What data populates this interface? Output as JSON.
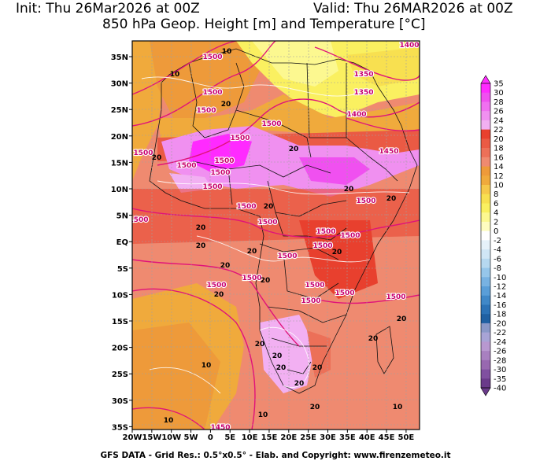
{
  "header": {
    "init_text": "Init: Thu 26Mar2026 at 00Z",
    "valid_text": "Valid: Thu 26MAR2026 at 00Z",
    "product_text": "850 hPa Geop. Height [m] and Temperature [°C]"
  },
  "map": {
    "lat_labels": [
      "35N",
      "30N",
      "25N",
      "20N",
      "15N",
      "10N",
      "5N",
      "EQ",
      "5S",
      "10S",
      "15S",
      "20S",
      "25S",
      "30S",
      "35S"
    ],
    "lon_labels": [
      "20W",
      "15W",
      "10W",
      "5W",
      "0",
      "5E",
      "10E",
      "15E",
      "20E",
      "25E",
      "30E",
      "35E",
      "40E",
      "45E",
      "50E"
    ],
    "height_labels": [
      "1500",
      "1450",
      "1400",
      "1350"
    ],
    "temperature_labels": [
      "10",
      "20"
    ]
  },
  "colorbar": {
    "values": [
      "35",
      "30",
      "28",
      "26",
      "24",
      "22",
      "20",
      "18",
      "16",
      "14",
      "12",
      "10",
      "8",
      "6",
      "4",
      "2",
      "0",
      "-2",
      "-4",
      "-6",
      "-8",
      "-10",
      "-12",
      "-14",
      "-16",
      "-18",
      "-20",
      "-22",
      "-24",
      "-26",
      "-28",
      "-30",
      "-35",
      "-40"
    ],
    "colors": [
      "#ff2aff",
      "#f050f0",
      "#f070f0",
      "#f090f0",
      "#f2b0f2",
      "#e8402e",
      "#ea5a44",
      "#ec7058",
      "#ef8a70",
      "#ee9a3a",
      "#f0aa3c",
      "#f6c84a",
      "#f8e050",
      "#faf060",
      "#fcf890",
      "#fefcc0",
      "#ffffff",
      "#e6f2fa",
      "#d0e6f6",
      "#b6d8f0",
      "#96c6ea",
      "#78b2e2",
      "#5a9ed8",
      "#4088c8",
      "#2c72b6",
      "#2060a2",
      "#8a98c8",
      "#a8a4d6",
      "#b898d0",
      "#a880c0",
      "#9868b0",
      "#8050a0",
      "#6a3a8a"
    ]
  },
  "footer": {
    "credit_text": "GFS DATA - Grid Res.: 0.5°x0.5° - Elab. and Copyright: www.firenzemeteo.it"
  }
}
